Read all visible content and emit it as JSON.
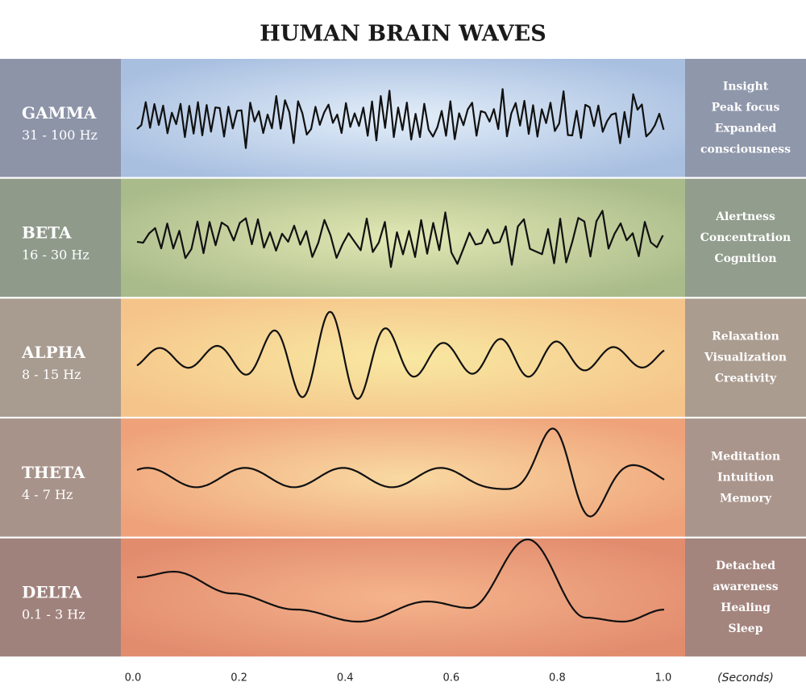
{
  "title": "HUMAN BRAIN WAVES",
  "bands": [
    {
      "name": "GAMMA",
      "range": "31 - 100 Hz",
      "effects": [
        "Insight",
        "Peak focus",
        "Expanded",
        "consciousness"
      ]
    },
    {
      "name": "BETA",
      "range": "16 - 30 Hz",
      "effects": [
        "Alertness",
        "Concentration",
        "Cognition"
      ]
    },
    {
      "name": "ALPHA",
      "range": "8 - 15 Hz",
      "effects": [
        "Relaxation",
        "Visualization",
        "Creativity"
      ]
    },
    {
      "name": "THETA",
      "range": "4 - 7 Hz",
      "effects": [
        "Meditation",
        "Intuition",
        "Memory"
      ]
    },
    {
      "name": "DELTA",
      "range": "0.1 - 3 Hz",
      "effects": [
        "Detached",
        "awareness",
        "Healing",
        "Sleep"
      ]
    }
  ],
  "axis": {
    "ticks": [
      "0.0",
      "0.2",
      "0.4",
      "0.6",
      "0.8",
      "1.0"
    ],
    "label": "(Seconds)"
  }
}
